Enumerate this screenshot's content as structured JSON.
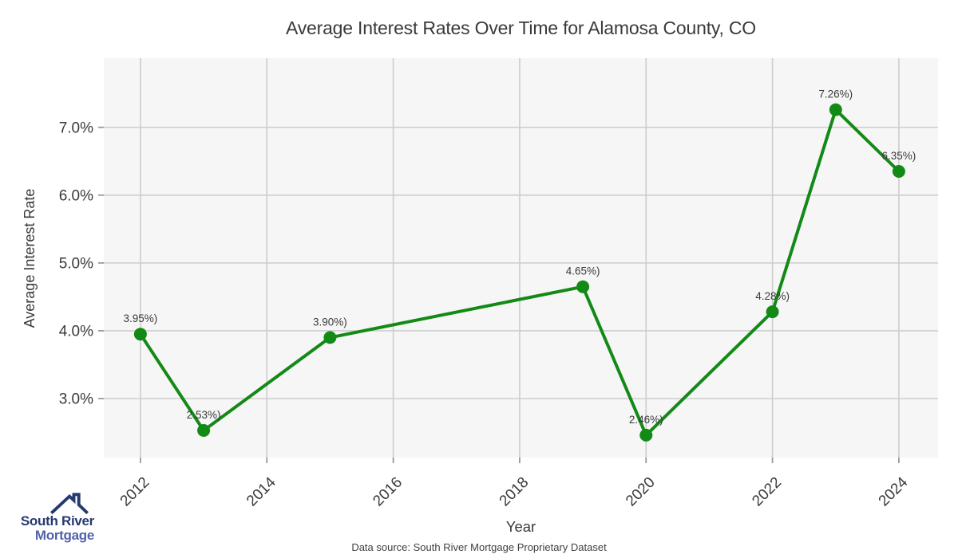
{
  "chart_data": {
    "type": "line",
    "title": "Average Interest Rates Over Time for Alamosa County, CO",
    "xlabel": "Year",
    "ylabel": "Average Interest Rate",
    "x": [
      2012,
      2013,
      2015,
      2019,
      2020,
      2022,
      2023,
      2024
    ],
    "values": [
      3.95,
      2.53,
      3.9,
      4.65,
      2.46,
      4.28,
      7.26,
      6.35
    ],
    "point_labels": [
      "3.95%)",
      "2.53%)",
      "3.90%)",
      "4.65%)",
      "2.46%)",
      "4.28%)",
      "7.26%)",
      "6.35%)"
    ],
    "x_ticks": [
      2012,
      2014,
      2016,
      2018,
      2020,
      2022,
      2024
    ],
    "x_tick_labels": [
      "2012",
      "2014",
      "2016",
      "2018",
      "2020",
      "2022",
      "2024"
    ],
    "y_ticks": [
      3,
      4,
      5,
      6,
      7
    ],
    "y_tick_labels": [
      "3.0%",
      "4.0%",
      "5.0%",
      "6.0%",
      "7.0%"
    ],
    "xlim": [
      2011.42,
      2024.62
    ],
    "ylim": [
      2.13,
      8.02
    ],
    "grid": true,
    "legend": false,
    "line_color": "#148a16",
    "marker_color": "#148a16",
    "plot_bg_color": "#f6f6f7",
    "grid_color": "#cdcdcd",
    "tick_color": "#9a9a9a",
    "label_color": "#3a3a3a"
  },
  "footer": {
    "source_note": "Data source: South River Mortgage Proprietary Dataset"
  },
  "logo": {
    "line1": "South River",
    "line2": "Mortgage",
    "color_primary": "#263a70",
    "color_secondary": "#5562ab",
    "icon": "house-roof-icon"
  }
}
